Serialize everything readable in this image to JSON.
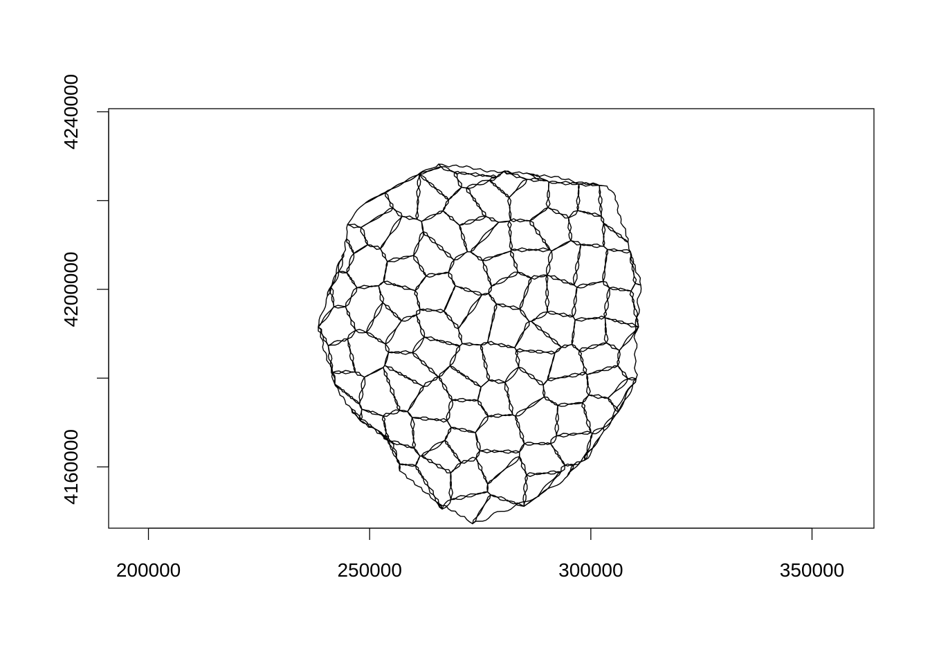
{
  "map": {
    "type": "polygon-outline-plot",
    "line_color": "#000000",
    "background": "#ffffff",
    "x_axis": {
      "ticks": [
        {
          "value": 200000,
          "label": "200000"
        },
        {
          "value": 250000,
          "label": "250000"
        },
        {
          "value": 300000,
          "label": "300000"
        },
        {
          "value": 350000,
          "label": "350000"
        }
      ],
      "range": [
        191000,
        364000
      ]
    },
    "y_axis": {
      "ticks": [
        {
          "value": 4160000,
          "label": "4160000"
        },
        {
          "value": 4200000,
          "label": "4200000"
        },
        {
          "value": 4240000,
          "label": "4240000"
        }
      ],
      "range": [
        4146200,
        4240700
      ]
    },
    "region_description": "sub-catchment polygons forming a roughly circular district",
    "region_extent": {
      "x": [
        238000,
        317500
      ],
      "y": [
        4147500,
        4234700
      ]
    }
  }
}
